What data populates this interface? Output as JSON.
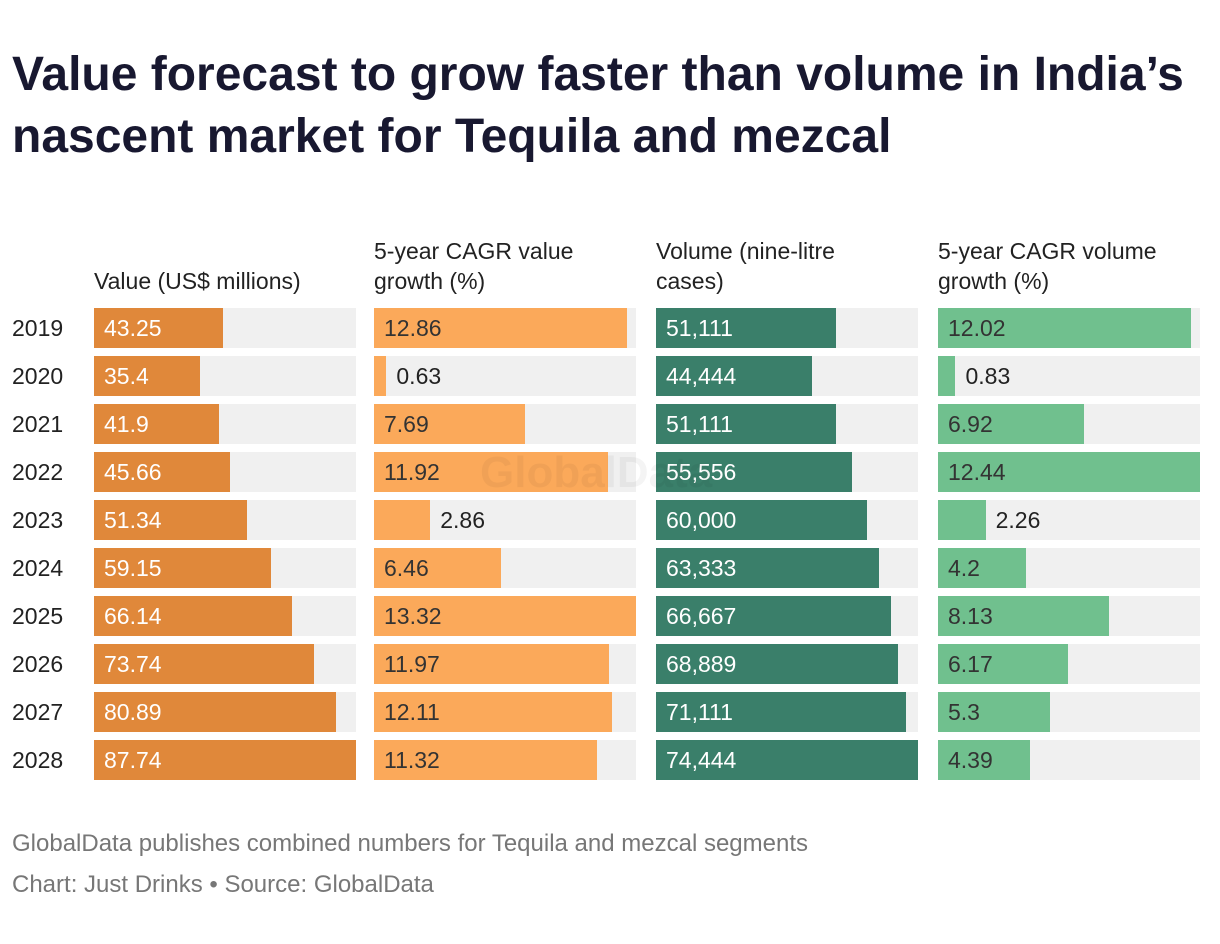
{
  "chart_data": {
    "type": "bar",
    "title": "Value forecast to grow faster than volume in India’s nascent market for Tequila and mezcal",
    "watermark": "GlobalData",
    "categories": [
      "2019",
      "2020",
      "2021",
      "2022",
      "2023",
      "2024",
      "2025",
      "2026",
      "2027",
      "2028"
    ],
    "series": [
      {
        "name": "Value (US$ millions)",
        "color": "#e0883a",
        "label_color": "#ffffff",
        "values": [
          43.25,
          35.4,
          41.9,
          45.66,
          51.34,
          59.15,
          66.14,
          73.74,
          80.89,
          87.74
        ]
      },
      {
        "name": "5-year CAGR value growth (%)",
        "color": "#fba95a",
        "label_color": "#333333",
        "values": [
          12.86,
          0.63,
          7.69,
          11.92,
          2.86,
          6.46,
          13.32,
          11.97,
          12.11,
          11.32
        ]
      },
      {
        "name": "Volume (nine-litre cases)",
        "color": "#3a7f6a",
        "label_color": "#ffffff",
        "values": [
          51111,
          44444,
          51111,
          55556,
          60000,
          63333,
          66667,
          68889,
          71111,
          74444
        ],
        "value_labels": [
          "51,111",
          "44,444",
          "51,111",
          "55,556",
          "60,000",
          "63,333",
          "66,667",
          "68,889",
          "71,111",
          "74,444"
        ]
      },
      {
        "name": "5-year CAGR volume growth (%)",
        "color": "#70c08e",
        "label_color": "#333333",
        "values": [
          12.02,
          0.83,
          6.92,
          12.44,
          2.26,
          4.2,
          8.13,
          6.17,
          5.3,
          4.39
        ]
      }
    ],
    "notes": [
      "GlobalData publishes combined numbers for Tequila and mezcal segments",
      "Chart: Just Drinks • Source: GlobalData"
    ]
  }
}
